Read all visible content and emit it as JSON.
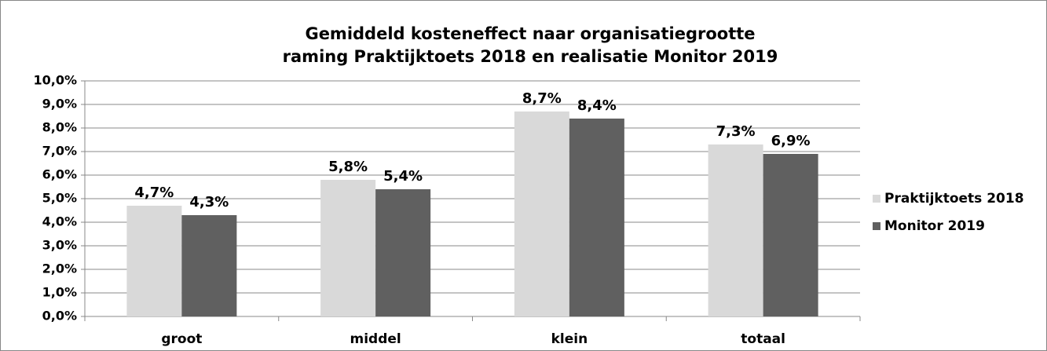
{
  "chart_data": {
    "type": "bar",
    "title": [
      "Gemiddeld kosteneffect naar organisatiegrootte",
      "raming Praktijktoets 2018 en realisatie Monitor 2019"
    ],
    "categories": [
      "groot",
      "middel",
      "klein",
      "totaal"
    ],
    "series": [
      {
        "name": "Praktijktoets 2018",
        "color": "#d9d9d9",
        "values": [
          4.7,
          5.8,
          8.7,
          7.3
        ],
        "value_labels": [
          "4,7%",
          "5,8%",
          "8,7%",
          "7,3%"
        ]
      },
      {
        "name": "Monitor 2019",
        "color": "#606060",
        "values": [
          4.3,
          5.4,
          8.4,
          6.9
        ],
        "value_labels": [
          "4,3%",
          "5,4%",
          "8,4%",
          "6,9%"
        ]
      }
    ],
    "ylim": [
      0,
      10
    ],
    "yticks": [
      {
        "value": 0,
        "label": "0,0%"
      },
      {
        "value": 1,
        "label": "1,0%"
      },
      {
        "value": 2,
        "label": "2,0%"
      },
      {
        "value": 3,
        "label": "3,0%"
      },
      {
        "value": 4,
        "label": "4,0%"
      },
      {
        "value": 5,
        "label": "5,0%"
      },
      {
        "value": 6,
        "label": "6,0%"
      },
      {
        "value": 7,
        "label": "7,0%"
      },
      {
        "value": 8,
        "label": "8,0%"
      },
      {
        "value": 9,
        "label": "9,0%"
      },
      {
        "value": 10,
        "label": "10,0%"
      }
    ],
    "grid": true,
    "legend": "right"
  }
}
